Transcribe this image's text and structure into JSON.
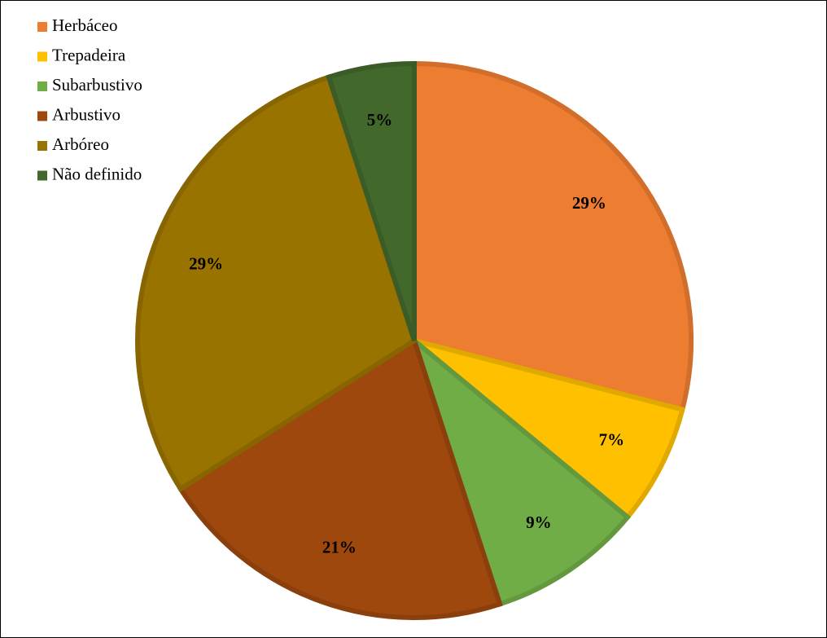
{
  "chart_data": {
    "type": "pie",
    "categories": [
      "Herbáceo",
      "Trepadeira",
      "Subarbustivo",
      "Arbustivo",
      "Arbóreo",
      "Não definido"
    ],
    "values": [
      29,
      7,
      9,
      21,
      29,
      5
    ],
    "value_labels": [
      "29%",
      "7%",
      "9%",
      "21%",
      "29%",
      "5%"
    ],
    "colors": [
      "#ED7D31",
      "#FFC000",
      "#70AD47",
      "#9E480E",
      "#997300",
      "#43682B"
    ],
    "legend": "top-left"
  }
}
